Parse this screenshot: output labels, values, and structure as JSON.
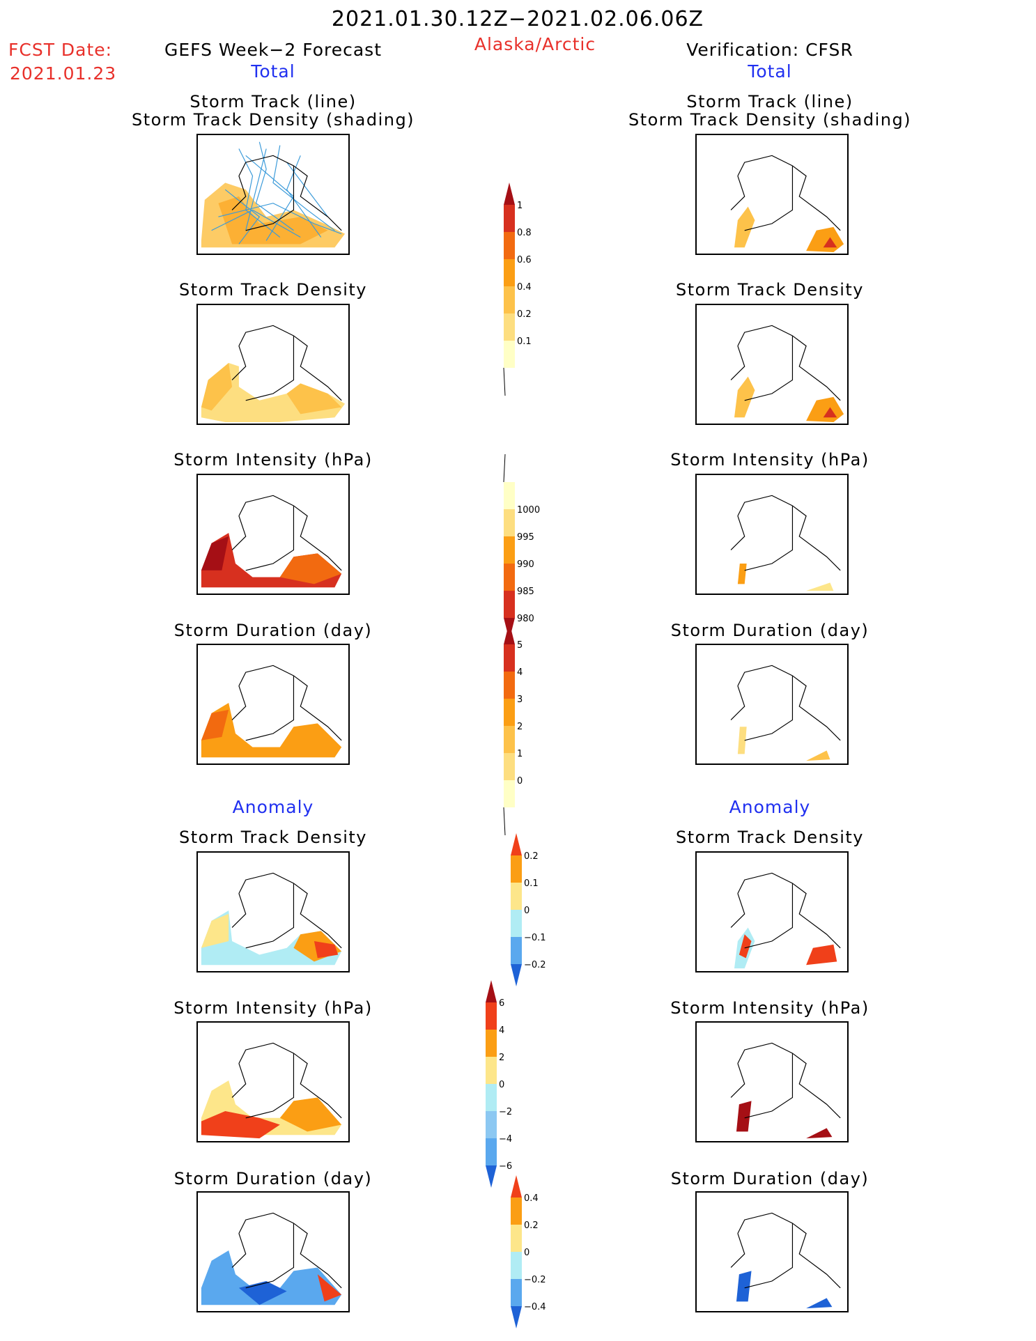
{
  "header": {
    "date_range": "2021.01.30.12Z−2021.02.06.06Z",
    "fcst_label": "FCST Date:",
    "fcst_date": "2021.01.23",
    "forecast_title": "GEFS Week−2 Forecast",
    "region": "Alaska/Arctic",
    "verification_title": "Verification: CFSR",
    "total_label_left": "Total",
    "total_label_right": "Total"
  },
  "sections": {
    "anomaly_label_left": "Anomaly",
    "anomaly_label_right": "Anomaly"
  },
  "panels": {
    "track_title_1": "Storm Track (line)",
    "track_title_2": "Storm Track Density (shading)",
    "density": "Storm Track Density",
    "intensity": "Storm Intensity (hPa)",
    "duration": "Storm Duration (day)"
  },
  "colorbars": {
    "density_total": {
      "labels": [
        "1",
        "0.8",
        "0.6",
        "0.4",
        "0.2",
        "0.1"
      ],
      "colors": [
        "#a50f15",
        "#d7301f",
        "#f26a10",
        "#fb9e14",
        "#fdc24a",
        "#fdde80",
        "#ffffc6"
      ]
    },
    "intensity_total": {
      "labels": [
        "1000",
        "995",
        "990",
        "985",
        "980"
      ],
      "colors": [
        "#ffffc6",
        "#fdde80",
        "#fb9e14",
        "#f26a10",
        "#d7301f",
        "#a50f15"
      ]
    },
    "duration_total": {
      "labels": [
        "5",
        "4",
        "3",
        "2",
        "1",
        "0"
      ],
      "colors": [
        "#a50f15",
        "#d7301f",
        "#f26a10",
        "#fb9e14",
        "#fdc24a",
        "#fdde80",
        "#ffffc6"
      ]
    },
    "density_anom": {
      "labels": [
        "0.2",
        "0.1",
        "0",
        "−0.1",
        "−0.2"
      ],
      "colors": [
        "#f0401a",
        "#fb9e14",
        "#fde68a",
        "#b0ecf4",
        "#5aa8ee",
        "#1e62d6"
      ]
    },
    "intensity_anom": {
      "labels": [
        "6",
        "4",
        "2",
        "0",
        "−2",
        "−4",
        "−6"
      ],
      "colors": [
        "#a50f15",
        "#f0401a",
        "#fb9e14",
        "#fde68a",
        "#b0ecf4",
        "#8cc8f2",
        "#5aa8ee",
        "#1e62d6"
      ]
    },
    "duration_anom": {
      "labels": [
        "0.4",
        "0.2",
        "0",
        "−0.2",
        "−0.4"
      ],
      "colors": [
        "#f0401a",
        "#fb9e14",
        "#fde68a",
        "#b0ecf4",
        "#5aa8ee",
        "#1e62d6"
      ]
    }
  }
}
